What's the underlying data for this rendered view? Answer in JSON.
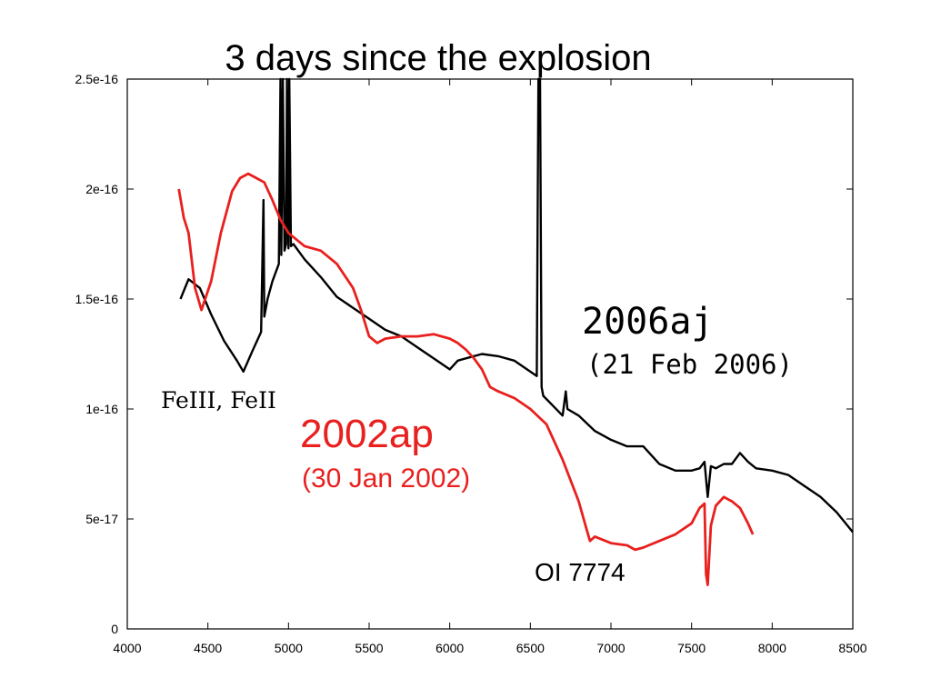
{
  "title": "3 days since the explosion",
  "chart_data": {
    "type": "line",
    "xlim": [
      4000,
      8500
    ],
    "ylim": [
      0,
      2.5e-16
    ],
    "x_ticks": [
      4000,
      4500,
      5000,
      5500,
      6000,
      6500,
      7000,
      7500,
      8000,
      8500
    ],
    "x_tick_labels": [
      "4000",
      "4500",
      "5000",
      "5500",
      "6000",
      "6500",
      "7000",
      "7500",
      "8000",
      "8500"
    ],
    "y_ticks": [
      0,
      5e-17,
      1e-16,
      1.5e-16,
      2e-16,
      2.5e-16
    ],
    "y_tick_labels": [
      "0",
      "5e-17",
      "1e-16",
      "1.5e-16",
      "2e-16",
      "2.5e-16"
    ],
    "grid": false,
    "colors": {
      "sn2006aj": "#000000",
      "sn2002ap": "#e8201e"
    },
    "series": [
      {
        "name": "2006aj",
        "date": "(21 Feb 2006)",
        "x": [
          4330,
          4380,
          4450,
          4520,
          4600,
          4680,
          4720,
          4780,
          4830,
          4845,
          4850,
          4870,
          4900,
          4940,
          4950,
          4955,
          4965,
          4975,
          4985,
          4990,
          5000,
          5005,
          5015,
          5030,
          5100,
          5200,
          5300,
          5400,
          5500,
          5600,
          5700,
          5800,
          5900,
          6000,
          6050,
          6100,
          6200,
          6300,
          6400,
          6500,
          6540,
          6550,
          6560,
          6570,
          6580,
          6700,
          6720,
          6730,
          6800,
          6900,
          7000,
          7100,
          7200,
          7300,
          7400,
          7500,
          7550,
          7580,
          7600,
          7620,
          7650,
          7700,
          7750,
          7800,
          7850,
          7900,
          8000,
          8100,
          8200,
          8300,
          8400,
          8500
        ],
        "y": [
          1.5e-16,
          1.59e-16,
          1.55e-16,
          1.43e-16,
          1.31e-16,
          1.22e-16,
          1.17e-16,
          1.27e-16,
          1.35e-16,
          1.95e-16,
          1.42e-16,
          1.5e-16,
          1.58e-16,
          1.66e-16,
          2.55e-16,
          1.7e-16,
          2.55e-16,
          1.72e-16,
          1.75e-16,
          2.55e-16,
          1.73e-16,
          2.55e-16,
          1.74e-16,
          1.75e-16,
          1.68e-16,
          1.6e-16,
          1.51e-16,
          1.46e-16,
          1.41e-16,
          1.36e-16,
          1.33e-16,
          1.28e-16,
          1.23e-16,
          1.18e-16,
          1.22e-16,
          1.23e-16,
          1.25e-16,
          1.24e-16,
          1.22e-16,
          1.17e-16,
          1.15e-16,
          2.5e-16,
          2.55e-16,
          1.1e-16,
          1.06e-16,
          9.7e-17,
          1.08e-16,
          1e-16,
          9.7e-17,
          9e-17,
          8.6e-17,
          8.3e-17,
          8.3e-17,
          7.5e-17,
          7.2e-17,
          7.2e-17,
          7.3e-17,
          7.6e-17,
          6e-17,
          7.4e-17,
          7.3e-17,
          7.5e-17,
          7.5e-17,
          8e-17,
          7.6e-17,
          7.3e-17,
          7.2e-17,
          7e-17,
          6.5e-17,
          6e-17,
          5.3e-17,
          4.4e-17
        ]
      },
      {
        "name": "2002ap",
        "date": "(30 Jan 2002)",
        "x": [
          4320,
          4350,
          4380,
          4420,
          4460,
          4520,
          4580,
          4650,
          4700,
          4750,
          4800,
          4850,
          4900,
          4950,
          5000,
          5100,
          5200,
          5300,
          5400,
          5450,
          5500,
          5550,
          5600,
          5700,
          5800,
          5900,
          6000,
          6050,
          6100,
          6150,
          6200,
          6250,
          6300,
          6400,
          6500,
          6600,
          6700,
          6800,
          6850,
          6870,
          6900,
          7000,
          7100,
          7150,
          7200,
          7300,
          7400,
          7500,
          7550,
          7580,
          7590,
          7600,
          7620,
          7650,
          7700,
          7750,
          7800,
          7850,
          7880
        ],
        "y": [
          2e-16,
          1.87e-16,
          1.8e-16,
          1.55e-16,
          1.45e-16,
          1.58e-16,
          1.8e-16,
          1.99e-16,
          2.05e-16,
          2.07e-16,
          2.05e-16,
          2.03e-16,
          1.95e-16,
          1.86e-16,
          1.8e-16,
          1.74e-16,
          1.72e-16,
          1.66e-16,
          1.55e-16,
          1.45e-16,
          1.33e-16,
          1.3e-16,
          1.32e-16,
          1.33e-16,
          1.33e-16,
          1.34e-16,
          1.32e-16,
          1.3e-16,
          1.27e-16,
          1.23e-16,
          1.18e-16,
          1.1e-16,
          1.08e-16,
          1.05e-16,
          1e-16,
          9.3e-17,
          7.7e-17,
          5.8e-17,
          4.5e-17,
          4e-17,
          4.2e-17,
          3.9e-17,
          3.8e-17,
          3.6e-17,
          3.7e-17,
          4e-17,
          4.3e-17,
          4.8e-17,
          5.5e-17,
          5.7e-17,
          2.5e-17,
          2e-17,
          4.7e-17,
          5.6e-17,
          6e-17,
          5.8e-17,
          5.5e-17,
          4.8e-17,
          4.3e-17
        ]
      }
    ],
    "annotations": {
      "sn2006aj_name": "2006aj",
      "sn2006aj_date": "(21 Feb 2006)",
      "sn2002ap_name": "2002ap",
      "sn2002ap_date": "(30 Jan 2002)",
      "fe_lines": "FeIII, FeII",
      "oi_line": "OI 7774"
    }
  }
}
